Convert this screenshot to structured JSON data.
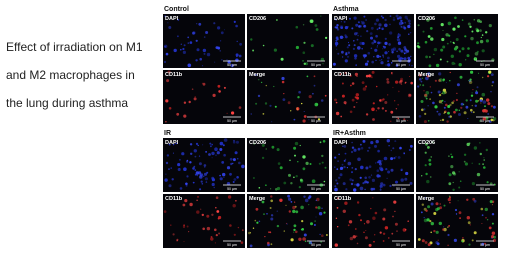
{
  "caption": {
    "lines": [
      "Effect of irradiation on M1",
      "and M2 macrophages in",
      "the lung during asthma"
    ]
  },
  "panels": [
    {
      "title": "Control",
      "cells": [
        {
          "label": "DAPI",
          "scale": "50 µm"
        },
        {
          "label": "CD206",
          "scale": "50 µm"
        },
        {
          "label": "CD11b",
          "scale": "50 µm"
        },
        {
          "label": "Merge",
          "scale": "50 µm"
        }
      ]
    },
    {
      "title": "Asthma",
      "cells": [
        {
          "label": "DAPI",
          "scale": "50 µm"
        },
        {
          "label": "CD206",
          "scale": "50 µm"
        },
        {
          "label": "CD11b",
          "scale": "50 µm"
        },
        {
          "label": "Merge",
          "scale": "50 µm"
        }
      ]
    },
    {
      "title": "IR",
      "cells": [
        {
          "label": "DAPI",
          "scale": "50 µm"
        },
        {
          "label": "CD206",
          "scale": "50 µm"
        },
        {
          "label": "CD11b",
          "scale": "50 µm"
        },
        {
          "label": "Merge",
          "scale": "50 µm"
        }
      ]
    },
    {
      "title": "IR+Asthm",
      "cells": [
        {
          "label": "DAPI",
          "scale": "50 µm"
        },
        {
          "label": "CD206",
          "scale": "50 µm"
        },
        {
          "label": "CD11b",
          "scale": "50 µm"
        },
        {
          "label": "Merge",
          "scale": "50 µm"
        }
      ]
    }
  ]
}
